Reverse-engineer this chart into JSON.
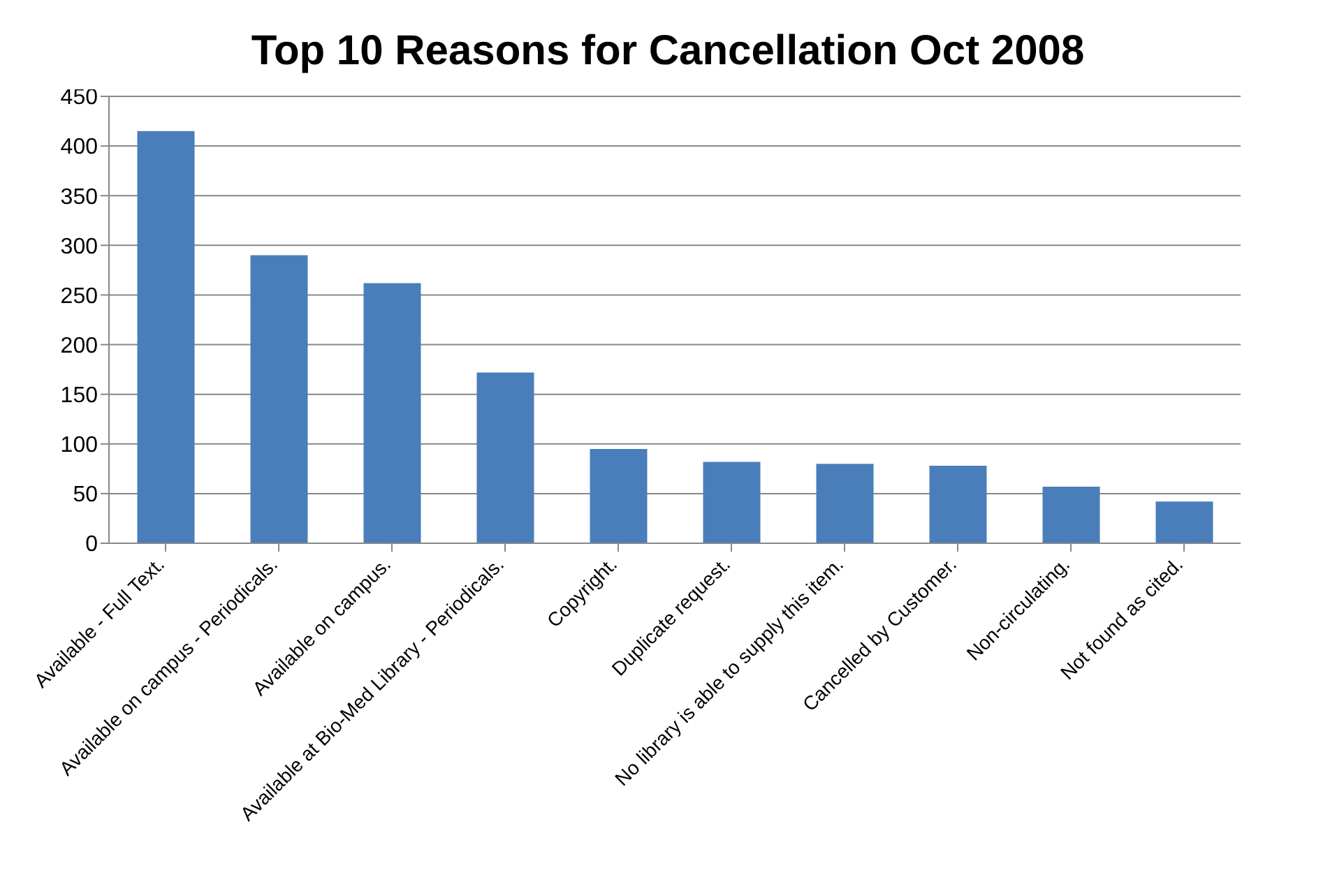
{
  "chart_data": {
    "type": "bar",
    "title": "Top 10 Reasons for Cancellation Oct 2008",
    "categories": [
      "Available - Full Text.",
      "Available on campus - Periodicals.",
      "Available on campus.",
      "Available at Bio-Med Library - Periodicals.",
      "Copyright.",
      "Duplicate request.",
      "No library is able to supply this item.",
      "Cancelled by Customer.",
      "Non-circulating.",
      "Not found as cited."
    ],
    "values": [
      415,
      290,
      262,
      172,
      95,
      82,
      80,
      78,
      57,
      42
    ],
    "color": "#4a7ebb",
    "ylim": [
      0,
      450
    ],
    "yticks": [
      0,
      50,
      100,
      150,
      200,
      250,
      300,
      350,
      400,
      450
    ],
    "grid": "y"
  }
}
